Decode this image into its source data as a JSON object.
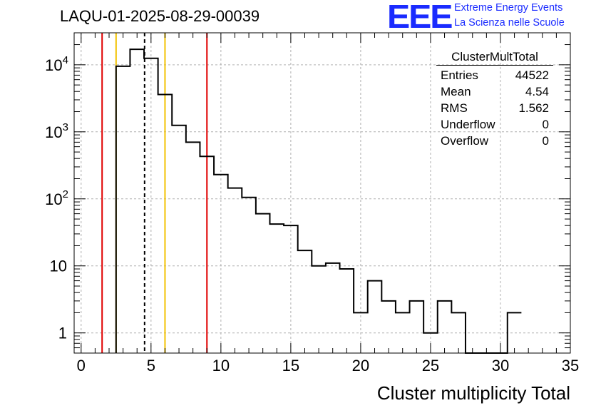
{
  "header": {
    "title": "LAQU-01-2025-08-29-00039",
    "logo_text": "EEE",
    "logo_line1": "Extreme Energy Events",
    "logo_line2": "La Scienza nelle Scuole"
  },
  "stats": {
    "name": "ClusterMultTotal",
    "rows": [
      {
        "label": "Entries",
        "value": "44522"
      },
      {
        "label": "Mean",
        "value": "4.54"
      },
      {
        "label": "RMS",
        "value": "1.562"
      },
      {
        "label": "Underflow",
        "value": "0"
      },
      {
        "label": "Overflow",
        "value": "0"
      }
    ]
  },
  "colors": {
    "red_line": "#e00000",
    "yellow_line": "#f2c200",
    "histogram": "#000000",
    "grid": "#b0b0b0"
  },
  "chart_data": {
    "type": "histogram",
    "xlabel": "Cluster multiplicity Total",
    "ylabel": "",
    "xlim": [
      -0.5,
      35
    ],
    "ylim": [
      0.5,
      30000
    ],
    "yscale": "log",
    "bin_width": 1,
    "bin_edges_start": 2.5,
    "values": [
      9500,
      17000,
      12500,
      3600,
      1250,
      700,
      430,
      230,
      145,
      105,
      60,
      42,
      40,
      17,
      10,
      11,
      9,
      2,
      6,
      3,
      2,
      3,
      1,
      3,
      2,
      0,
      0,
      0,
      2
    ],
    "x_ticks": [
      "0",
      "5",
      "10",
      "15",
      "20",
      "25",
      "30",
      "35"
    ],
    "x_tick_values": [
      0,
      5,
      10,
      15,
      20,
      25,
      30,
      35
    ],
    "y_ticks": [
      {
        "value": 1,
        "base": "1",
        "exp": ""
      },
      {
        "value": 10,
        "base": "10",
        "exp": ""
      },
      {
        "value": 100,
        "base": "10",
        "exp": "2"
      },
      {
        "value": 1000,
        "base": "10",
        "exp": "3"
      },
      {
        "value": 10000,
        "base": "10",
        "exp": "4"
      }
    ],
    "vertical_lines": [
      {
        "x": 1.5,
        "color": "red",
        "style": "solid"
      },
      {
        "x": 2.5,
        "color": "yellow",
        "style": "solid"
      },
      {
        "x": 4.54,
        "color": "black",
        "style": "dashed"
      },
      {
        "x": 6.0,
        "color": "yellow",
        "style": "solid"
      },
      {
        "x": 9.0,
        "color": "red",
        "style": "solid"
      }
    ],
    "grid": true,
    "legend": "top-right"
  }
}
